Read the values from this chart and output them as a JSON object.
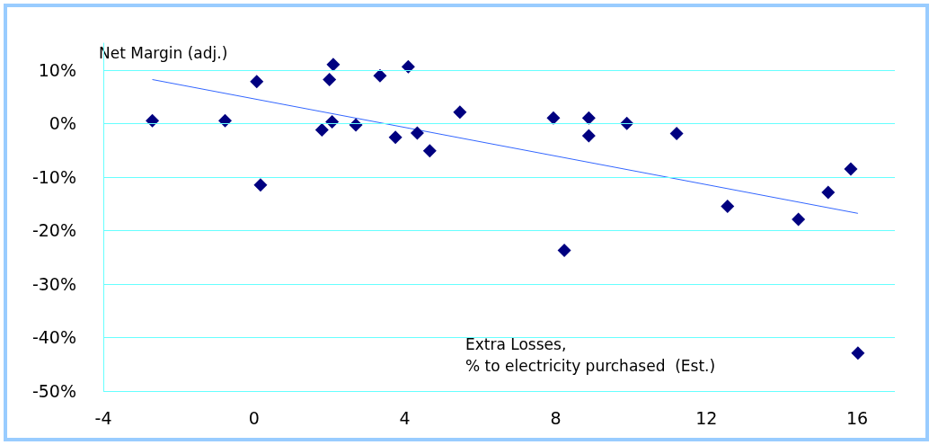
{
  "chart_data": {
    "type": "scatter",
    "ylabel": "Net Margin (adj.)",
    "xlabel": "Extra Losses,\n% to electricity purchased  (Est.)",
    "xlim": [
      -4,
      17
    ],
    "xticks": [
      -4,
      0,
      4,
      8,
      12,
      16
    ],
    "ylim": [
      -50,
      15
    ],
    "yticks": [
      {
        "value": -50,
        "label": "-50%"
      },
      {
        "value": -40,
        "label": "-40%"
      },
      {
        "value": -30,
        "label": "-30%"
      },
      {
        "value": -20,
        "label": "-20%"
      },
      {
        "value": -10,
        "label": "-10%"
      },
      {
        "value": 0,
        "label": "0%"
      },
      {
        "value": 10,
        "label": "10%"
      }
    ],
    "grid": "y",
    "marker": "diamond",
    "series": [
      {
        "type": "scatter",
        "color": "#000080",
        "x": [
          -2.7,
          -0.77,
          0.07,
          0.17,
          1.8,
          2.0,
          2.07,
          2.1,
          2.7,
          3.34,
          3.75,
          4.09,
          4.33,
          4.66,
          5.46,
          7.94,
          8.23,
          8.88,
          8.88,
          9.89,
          11.21,
          12.56,
          14.44,
          15.23,
          15.83,
          16.02
        ],
        "values": [
          0.5,
          0.5,
          7.8,
          -11.5,
          -1.2,
          8.2,
          0.3,
          11,
          -0.3,
          8.9,
          -2.6,
          10.6,
          -1.8,
          -5.1,
          2.1,
          1.0,
          -23.7,
          1.0,
          -2.3,
          0,
          -1.9,
          -15.5,
          -17.9,
          -12.9,
          -8.5,
          -42.9
        ]
      },
      {
        "type": "line",
        "color": "#3366ff",
        "marker": "none",
        "x": [
          -2.7,
          16.02
        ],
        "values": [
          8.2,
          -16.8
        ]
      }
    ]
  }
}
